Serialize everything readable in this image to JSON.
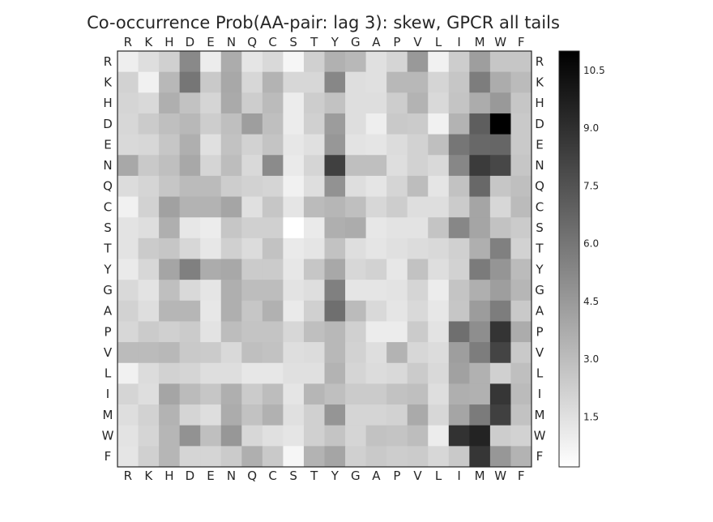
{
  "chart_data": {
    "type": "heatmap",
    "title": "Co-occurrence Prob(AA-pair: lag 3): skew, GPCR all tails",
    "rows": [
      "R",
      "K",
      "H",
      "D",
      "E",
      "N",
      "Q",
      "C",
      "S",
      "T",
      "Y",
      "G",
      "A",
      "P",
      "V",
      "L",
      "I",
      "M",
      "W",
      "F"
    ],
    "cols": [
      "R",
      "K",
      "H",
      "D",
      "E",
      "N",
      "Q",
      "C",
      "S",
      "T",
      "Y",
      "G",
      "A",
      "P",
      "V",
      "L",
      "I",
      "M",
      "W",
      "F"
    ],
    "values": [
      [
        0.9,
        1.6,
        2.2,
        5.2,
        1.0,
        3.7,
        1.3,
        1.8,
        0.6,
        2.2,
        3.5,
        3.2,
        1.5,
        2.0,
        4.5,
        0.8,
        2.3,
        4.3,
        2.6,
        2.6
      ],
      [
        2.1,
        0.8,
        3.2,
        6.0,
        2.5,
        3.9,
        1.9,
        3.4,
        1.9,
        1.9,
        5.3,
        1.6,
        1.5,
        3.2,
        3.2,
        2.0,
        2.6,
        5.7,
        3.7,
        3.1
      ],
      [
        2.0,
        1.8,
        3.6,
        2.8,
        2.0,
        3.8,
        2.3,
        3.1,
        1.0,
        2.3,
        2.8,
        1.6,
        1.6,
        2.3,
        3.4,
        1.8,
        2.7,
        3.7,
        4.5,
        2.6
      ],
      [
        1.9,
        2.4,
        2.9,
        3.2,
        2.3,
        2.9,
        4.3,
        2.9,
        1.0,
        2.2,
        4.4,
        1.6,
        0.9,
        2.5,
        2.4,
        0.8,
        3.4,
        7.0,
        11.0,
        2.5
      ],
      [
        1.8,
        1.9,
        2.6,
        3.6,
        1.5,
        2.8,
        2.1,
        2.7,
        1.2,
        1.5,
        4.6,
        1.4,
        1.3,
        1.7,
        2.1,
        2.9,
        6.0,
        6.6,
        6.7,
        2.5
      ],
      [
        3.9,
        2.5,
        2.9,
        3.9,
        2.0,
        3.0,
        1.8,
        5.1,
        1.1,
        2.0,
        8.3,
        2.9,
        2.9,
        1.6,
        2.1,
        1.8,
        5.3,
        8.5,
        8.0,
        2.6
      ],
      [
        1.7,
        2.0,
        2.6,
        3.1,
        3.1,
        2.3,
        2.1,
        2.0,
        0.8,
        1.6,
        4.8,
        1.6,
        1.3,
        2.0,
        3.0,
        1.3,
        2.8,
        6.6,
        2.6,
        2.9
      ],
      [
        0.8,
        2.1,
        4.2,
        3.4,
        3.4,
        4.0,
        1.5,
        2.6,
        1.3,
        3.1,
        3.3,
        2.9,
        1.9,
        2.3,
        1.6,
        1.6,
        2.4,
        4.0,
        1.9,
        3.1
      ],
      [
        1.4,
        1.6,
        3.6,
        1.2,
        1.0,
        2.6,
        2.2,
        2.2,
        0.2,
        1.1,
        3.6,
        3.7,
        1.2,
        1.4,
        1.4,
        2.7,
        5.3,
        4.0,
        2.8,
        2.4
      ],
      [
        1.4,
        2.4,
        2.6,
        1.9,
        1.2,
        2.2,
        1.7,
        2.8,
        1.1,
        1.3,
        2.8,
        1.6,
        1.3,
        1.5,
        1.7,
        1.8,
        2.2,
        3.6,
        5.6,
        2.1
      ],
      [
        1.1,
        1.9,
        4.0,
        5.6,
        3.7,
        3.9,
        2.4,
        2.4,
        1.2,
        2.6,
        3.9,
        1.9,
        2.1,
        1.2,
        2.8,
        1.6,
        2.1,
        5.8,
        4.7,
        3.1
      ],
      [
        1.8,
        1.4,
        2.9,
        1.8,
        1.3,
        3.6,
        3.0,
        3.0,
        1.4,
        1.6,
        5.6,
        1.3,
        1.3,
        1.4,
        2.0,
        1.0,
        2.7,
        3.6,
        4.3,
        3.3
      ],
      [
        2.1,
        1.6,
        3.3,
        3.3,
        1.2,
        3.6,
        2.6,
        3.5,
        1.1,
        2.2,
        6.3,
        3.1,
        1.8,
        1.3,
        1.8,
        1.2,
        2.6,
        4.4,
        5.7,
        2.5
      ],
      [
        1.9,
        2.4,
        2.2,
        2.4,
        1.4,
        3.0,
        2.7,
        2.7,
        1.9,
        2.9,
        3.2,
        2.2,
        1.0,
        1.0,
        2.4,
        1.4,
        6.3,
        5.0,
        8.8,
        3.7
      ],
      [
        3.1,
        3.1,
        3.2,
        2.5,
        2.4,
        1.8,
        2.9,
        2.8,
        1.6,
        1.7,
        3.2,
        2.1,
        1.6,
        3.4,
        1.9,
        1.7,
        4.3,
        5.7,
        8.1,
        2.5
      ],
      [
        0.8,
        1.7,
        2.1,
        2.0,
        1.6,
        1.6,
        1.2,
        1.2,
        1.5,
        1.5,
        3.4,
        2.0,
        1.7,
        1.8,
        2.4,
        1.8,
        4.2,
        3.5,
        2.2,
        2.9
      ],
      [
        2.0,
        1.6,
        4.0,
        3.1,
        2.6,
        3.6,
        2.4,
        3.0,
        1.3,
        3.3,
        2.9,
        2.4,
        2.4,
        2.8,
        2.9,
        1.6,
        3.6,
        3.5,
        8.7,
        3.1
      ],
      [
        1.6,
        2.1,
        3.4,
        2.0,
        1.6,
        3.7,
        2.8,
        3.5,
        1.5,
        2.2,
        4.7,
        2.0,
        2.0,
        2.1,
        3.8,
        1.9,
        4.0,
        5.8,
        8.3,
        2.8
      ],
      [
        1.4,
        2.0,
        3.3,
        4.8,
        2.9,
        4.6,
        1.9,
        1.5,
        1.3,
        2.2,
        2.7,
        2.0,
        2.8,
        2.7,
        3.0,
        1.0,
        8.9,
        9.5,
        2.3,
        2.1
      ],
      [
        1.3,
        2.2,
        3.3,
        2.0,
        2.0,
        2.4,
        3.6,
        2.5,
        0.6,
        3.4,
        4.0,
        2.2,
        2.5,
        2.3,
        2.4,
        1.9,
        2.5,
        8.7,
        4.6,
        3.4
      ]
    ],
    "colorbar": {
      "min": 0.2,
      "max": 11.0,
      "ticks": [
        "1.5",
        "3.0",
        "4.5",
        "6.0",
        "7.5",
        "9.0",
        "10.5"
      ],
      "colormap": "greys"
    },
    "grid": false
  }
}
